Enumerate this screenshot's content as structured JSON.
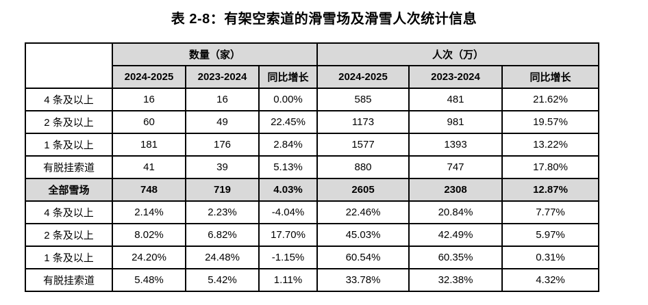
{
  "title": "表 2-8：有架空索道的滑雪场及滑雪人次统计信息",
  "colors": {
    "header_bg": "#d9d9d9",
    "highlight_row_bg": "#d9d9d9",
    "border": "#000000",
    "text": "#000000"
  },
  "table": {
    "group_headers": {
      "quantity": "数量（家）",
      "visits": "人次（万）"
    },
    "sub_headers": [
      "2024-2025",
      "2023-2024",
      "同比增长",
      "2024-2025",
      "2023-2024",
      "同比增长"
    ],
    "rows": [
      {
        "label": "4 条及以上",
        "values": [
          "16",
          "16",
          "0.00%",
          "585",
          "481",
          "21.62%"
        ]
      },
      {
        "label": "2 条及以上",
        "values": [
          "60",
          "49",
          "22.45%",
          "1173",
          "981",
          "19.57%"
        ]
      },
      {
        "label": "1 条及以上",
        "values": [
          "181",
          "176",
          "2.84%",
          "1577",
          "1393",
          "13.22%"
        ]
      },
      {
        "label": "有脱挂索道",
        "values": [
          "41",
          "39",
          "5.13%",
          "880",
          "747",
          "17.80%"
        ]
      },
      {
        "label": "全部雪场",
        "values": [
          "748",
          "719",
          "4.03%",
          "2605",
          "2308",
          "12.87%"
        ]
      },
      {
        "label": "4 条及以上",
        "values": [
          "2.14%",
          "2.23%",
          "-4.04%",
          "22.46%",
          "20.84%",
          "7.77%"
        ]
      },
      {
        "label": "2 条及以上",
        "values": [
          "8.02%",
          "6.82%",
          "17.70%",
          "45.03%",
          "42.49%",
          "5.97%"
        ]
      },
      {
        "label": "1 条及以上",
        "values": [
          "24.20%",
          "24.48%",
          "-1.15%",
          "60.54%",
          "60.35%",
          "0.31%"
        ]
      },
      {
        "label": "有脱挂索道",
        "values": [
          "5.48%",
          "5.42%",
          "1.11%",
          "33.78%",
          "32.38%",
          "4.32%"
        ]
      }
    ]
  }
}
